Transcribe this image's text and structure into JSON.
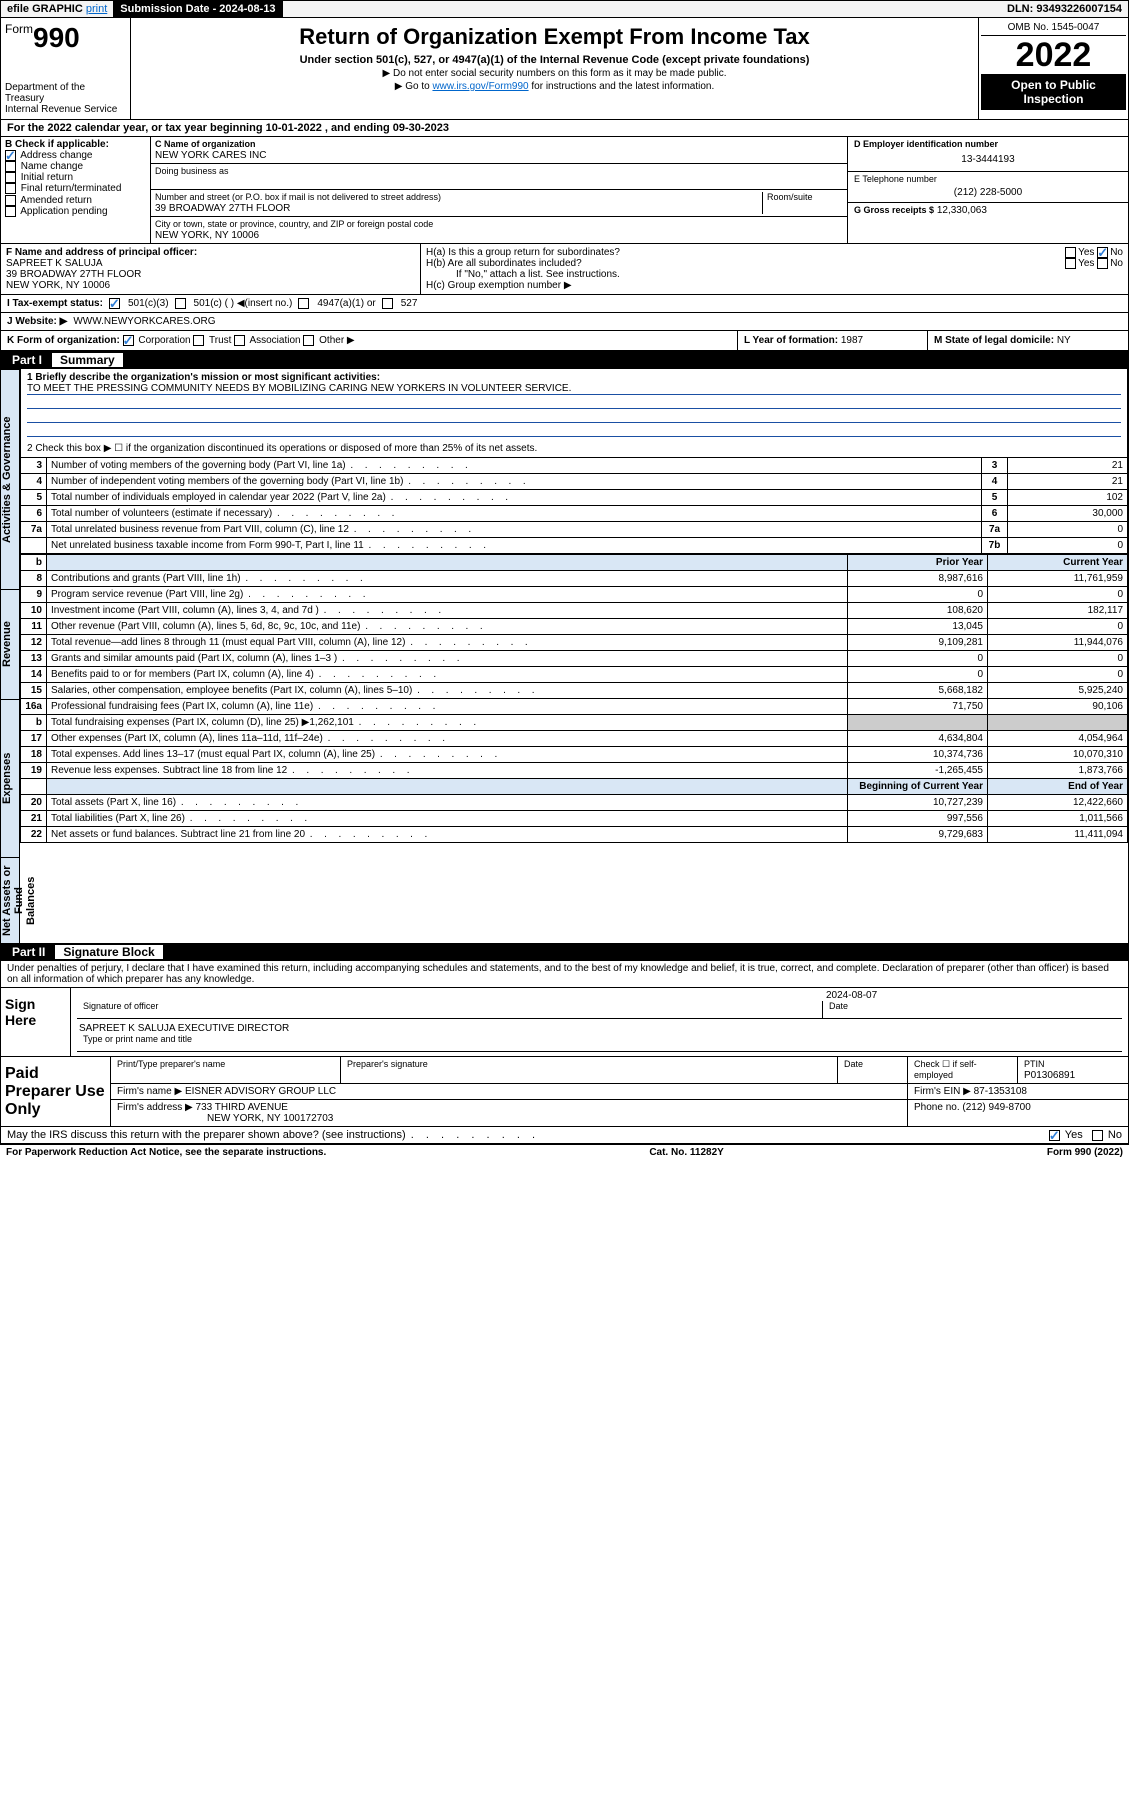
{
  "topbar": {
    "efile": "efile GRAPHIC",
    "print": "print",
    "subdate_label": "Submission Date - 2024-08-13",
    "dln": "DLN: 93493226007154"
  },
  "header": {
    "form_word": "Form",
    "form_num": "990",
    "dept": "Department of the Treasury",
    "irs": "Internal Revenue Service",
    "title": "Return of Organization Exempt From Income Tax",
    "subtitle": "Under section 501(c), 527, or 4947(a)(1) of the Internal Revenue Code (except private foundations)",
    "note1": "▶ Do not enter social security numbers on this form as it may be made public.",
    "note2_pre": "▶ Go to ",
    "note2_link": "www.irs.gov/Form990",
    "note2_post": " for instructions and the latest information.",
    "omb": "OMB No. 1545-0047",
    "year": "2022",
    "open": "Open to Public Inspection"
  },
  "lineA": "For the 2022 calendar year, or tax year beginning 10-01-2022   , and ending 09-30-2023",
  "boxB": {
    "title": "B Check if applicable:",
    "items": [
      "Address change",
      "Name change",
      "Initial return",
      "Final return/terminated",
      "Amended return",
      "Application pending"
    ],
    "checked": [
      true,
      false,
      false,
      false,
      false,
      false
    ]
  },
  "boxC": {
    "label": "C Name of organization",
    "name": "NEW YORK CARES INC",
    "dba_label": "Doing business as",
    "addr_label": "Number and street (or P.O. box if mail is not delivered to street address)",
    "room": "Room/suite",
    "addr": "39 BROADWAY 27TH FLOOR",
    "city_label": "City or town, state or province, country, and ZIP or foreign postal code",
    "city": "NEW YORK, NY  10006"
  },
  "boxD": {
    "label": "D Employer identification number",
    "val": "13-3444193"
  },
  "boxE": {
    "label": "E Telephone number",
    "val": "(212) 228-5000"
  },
  "boxG": {
    "label": "G Gross receipts $",
    "val": "12,330,063"
  },
  "boxF": {
    "label": "F Name and address of principal officer:",
    "name": "SAPREET K SALUJA",
    "addr1": "39 BROADWAY 27TH FLOOR",
    "addr2": "NEW YORK, NY  10006"
  },
  "boxH": {
    "ha": "H(a)  Is this a group return for subordinates?",
    "hb": "H(b)  Are all subordinates included?",
    "hb_note": "If \"No,\" attach a list. See instructions.",
    "hc": "H(c)  Group exemption number ▶"
  },
  "rowI": {
    "label": "I   Tax-exempt status:",
    "c3": "501(c)(3)",
    "c": "501(c) (  ) ◀(insert no.)",
    "a1": "4947(a)(1) or",
    "s527": "527"
  },
  "rowJ": {
    "label": "J   Website: ▶",
    "val": "WWW.NEWYORKCARES.ORG"
  },
  "rowK": {
    "label": "K Form of organization:",
    "corp": "Corporation",
    "trust": "Trust",
    "assoc": "Association",
    "other": "Other ▶"
  },
  "rowL": {
    "label": "L Year of formation:",
    "val": "1987"
  },
  "rowM": {
    "label": "M State of legal domicile:",
    "val": "NY"
  },
  "part1": {
    "hdr_num": "Part I",
    "hdr_title": "Summary",
    "vbars": [
      "Activities & Governance",
      "Revenue",
      "Expenses",
      "Net Assets or Fund Balances"
    ],
    "line1_label": "1  Briefly describe the organization's mission or most significant activities:",
    "line1_text": "TO MEET THE PRESSING COMMUNITY NEEDS BY MOBILIZING CARING NEW YORKERS IN VOLUNTEER SERVICE.",
    "line2": "2   Check this box ▶ ☐  if the organization discontinued its operations or disposed of more than 25% of its net assets.",
    "gov_rows": [
      {
        "n": "3",
        "d": "Number of voting members of the governing body (Part VI, line 1a)",
        "box": "3",
        "v": "21"
      },
      {
        "n": "4",
        "d": "Number of independent voting members of the governing body (Part VI, line 1b)",
        "box": "4",
        "v": "21"
      },
      {
        "n": "5",
        "d": "Total number of individuals employed in calendar year 2022 (Part V, line 2a)",
        "box": "5",
        "v": "102"
      },
      {
        "n": "6",
        "d": "Total number of volunteers (estimate if necessary)",
        "box": "6",
        "v": "30,000"
      },
      {
        "n": "7a",
        "d": "Total unrelated business revenue from Part VIII, column (C), line 12",
        "box": "7a",
        "v": "0"
      },
      {
        "n": "",
        "d": "Net unrelated business taxable income from Form 990-T, Part I, line 11",
        "box": "7b",
        "v": "0"
      }
    ],
    "yr_prior": "Prior Year",
    "yr_curr": "Current Year",
    "rev_rows": [
      {
        "n": "8",
        "d": "Contributions and grants (Part VIII, line 1h)",
        "p": "8,987,616",
        "c": "11,761,959"
      },
      {
        "n": "9",
        "d": "Program service revenue (Part VIII, line 2g)",
        "p": "0",
        "c": "0"
      },
      {
        "n": "10",
        "d": "Investment income (Part VIII, column (A), lines 3, 4, and 7d )",
        "p": "108,620",
        "c": "182,117"
      },
      {
        "n": "11",
        "d": "Other revenue (Part VIII, column (A), lines 5, 6d, 8c, 9c, 10c, and 11e)",
        "p": "13,045",
        "c": "0"
      },
      {
        "n": "12",
        "d": "Total revenue—add lines 8 through 11 (must equal Part VIII, column (A), line 12)",
        "p": "9,109,281",
        "c": "11,944,076"
      }
    ],
    "exp_rows": [
      {
        "n": "13",
        "d": "Grants and similar amounts paid (Part IX, column (A), lines 1–3 )",
        "p": "0",
        "c": "0"
      },
      {
        "n": "14",
        "d": "Benefits paid to or for members (Part IX, column (A), line 4)",
        "p": "0",
        "c": "0"
      },
      {
        "n": "15",
        "d": "Salaries, other compensation, employee benefits (Part IX, column (A), lines 5–10)",
        "p": "5,668,182",
        "c": "5,925,240"
      },
      {
        "n": "16a",
        "d": "Professional fundraising fees (Part IX, column (A), line 11e)",
        "p": "71,750",
        "c": "90,106"
      },
      {
        "n": "b",
        "d": "Total fundraising expenses (Part IX, column (D), line 25) ▶1,262,101",
        "p": "",
        "c": ""
      },
      {
        "n": "17",
        "d": "Other expenses (Part IX, column (A), lines 11a–11d, 11f–24e)",
        "p": "4,634,804",
        "c": "4,054,964"
      },
      {
        "n": "18",
        "d": "Total expenses. Add lines 13–17 (must equal Part IX, column (A), line 25)",
        "p": "10,374,736",
        "c": "10,070,310"
      },
      {
        "n": "19",
        "d": "Revenue less expenses. Subtract line 18 from line 12",
        "p": "-1,265,455",
        "c": "1,873,766"
      }
    ],
    "bal_hdr_p": "Beginning of Current Year",
    "bal_hdr_c": "End of Year",
    "bal_rows": [
      {
        "n": "20",
        "d": "Total assets (Part X, line 16)",
        "p": "10,727,239",
        "c": "12,422,660"
      },
      {
        "n": "21",
        "d": "Total liabilities (Part X, line 26)",
        "p": "997,556",
        "c": "1,011,566"
      },
      {
        "n": "22",
        "d": "Net assets or fund balances. Subtract line 21 from line 20",
        "p": "9,729,683",
        "c": "11,411,094"
      }
    ]
  },
  "part2": {
    "hdr_num": "Part II",
    "hdr_title": "Signature Block",
    "decl": "Under penalties of perjury, I declare that I have examined this return, including accompanying schedules and statements, and to the best of my knowledge and belief, it is true, correct, and complete. Declaration of preparer (other than officer) is based on all information of which preparer has any knowledge.",
    "sign_here": "Sign Here",
    "sig_officer": "Signature of officer",
    "sig_date": "Date",
    "sig_date_val": "2024-08-07",
    "officer_name": "SAPREET K SALUJA  EXECUTIVE DIRECTOR",
    "type_name": "Type or print name and title",
    "paid": "Paid Preparer Use Only",
    "prep_name": "Print/Type preparer's name",
    "prep_sig": "Preparer's signature",
    "prep_date": "Date",
    "prep_check": "Check ☐ if self-employed",
    "ptin_label": "PTIN",
    "ptin": "P01306891",
    "firm_name_label": "Firm's name    ▶",
    "firm_name": "EISNER ADVISORY GROUP LLC",
    "firm_ein_label": "Firm's EIN ▶",
    "firm_ein": "87-1353108",
    "firm_addr_label": "Firm's address ▶",
    "firm_addr1": "733 THIRD AVENUE",
    "firm_addr2": "NEW YORK, NY  100172703",
    "phone_label": "Phone no.",
    "phone": "(212) 949-8700",
    "may_irs": "May the IRS discuss this return with the preparer shown above? (see instructions)"
  },
  "footer": {
    "left": "For Paperwork Reduction Act Notice, see the separate instructions.",
    "mid": "Cat. No. 11282Y",
    "right": "Form 990 (2022)"
  }
}
